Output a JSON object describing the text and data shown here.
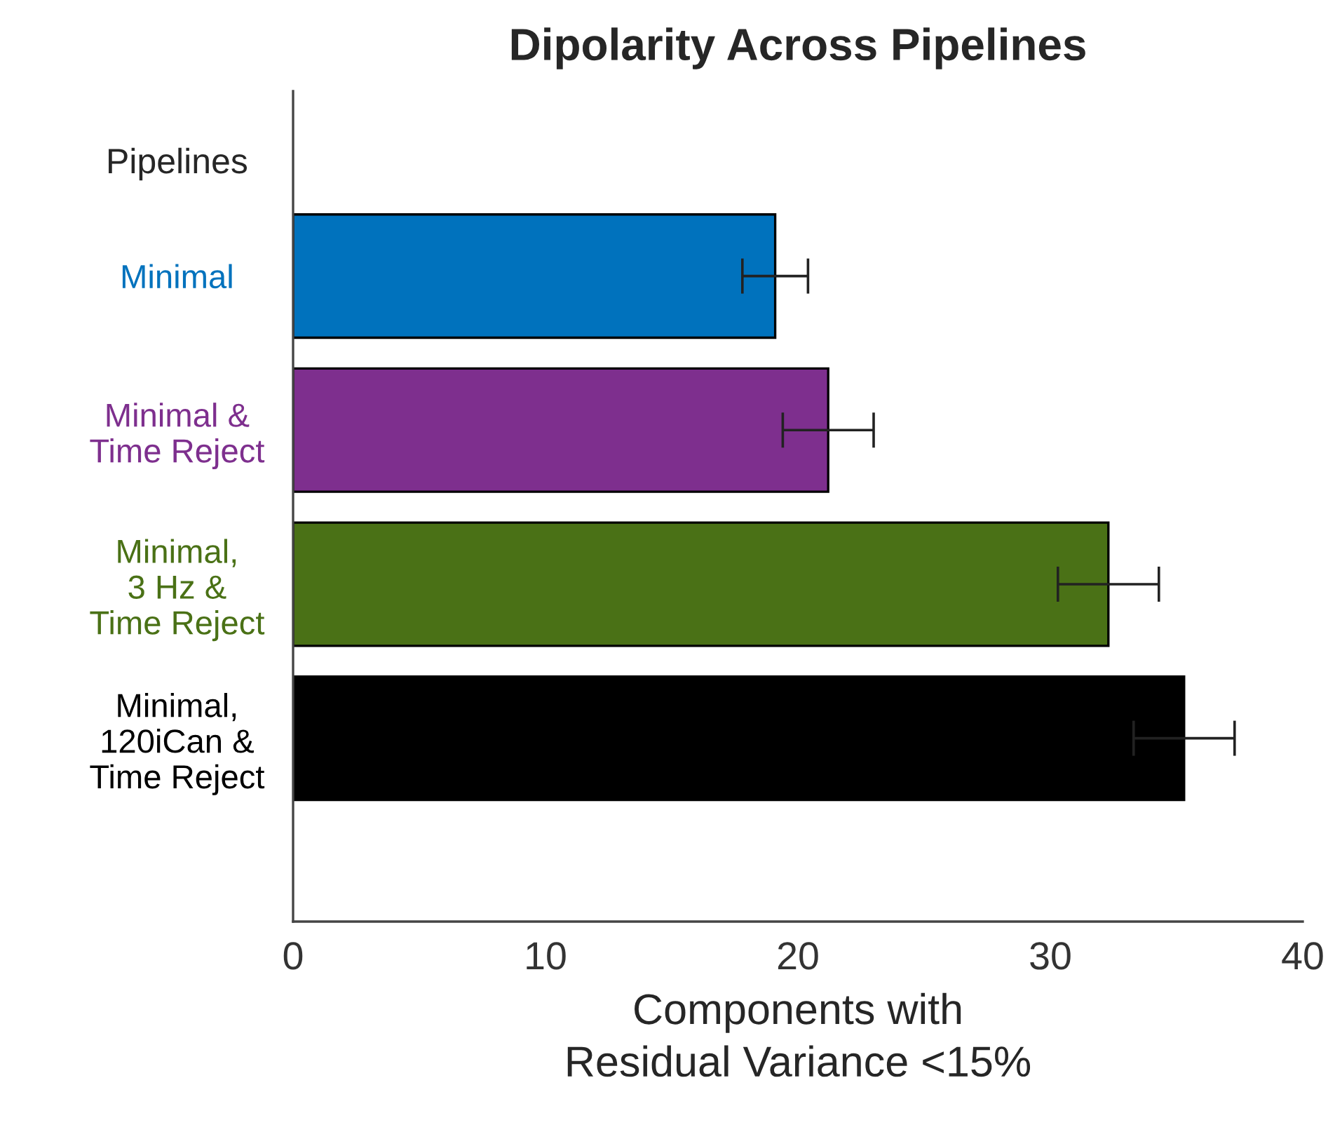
{
  "chart_data": {
    "type": "bar",
    "orientation": "horizontal",
    "title": "Dipolarity Across Pipelines",
    "ylabel": "Pipelines",
    "xlabel": "Components with\nResidual Variance <15%",
    "categories": [
      "Minimal",
      "Minimal &\nTime Reject",
      "Minimal,\n3 Hz &\nTime Reject",
      "Minimal,\n120iCan &\nTime Reject"
    ],
    "values": [
      19.1,
      21.2,
      32.3,
      35.3
    ],
    "errors": [
      1.3,
      1.8,
      2.0,
      2.0
    ],
    "colors": [
      "#0072bd",
      "#7e2f8e",
      "#4a7116",
      "#000000"
    ],
    "xlim": [
      0,
      40
    ],
    "xticks": [
      0,
      10,
      20,
      30,
      40
    ],
    "grid": false
  }
}
